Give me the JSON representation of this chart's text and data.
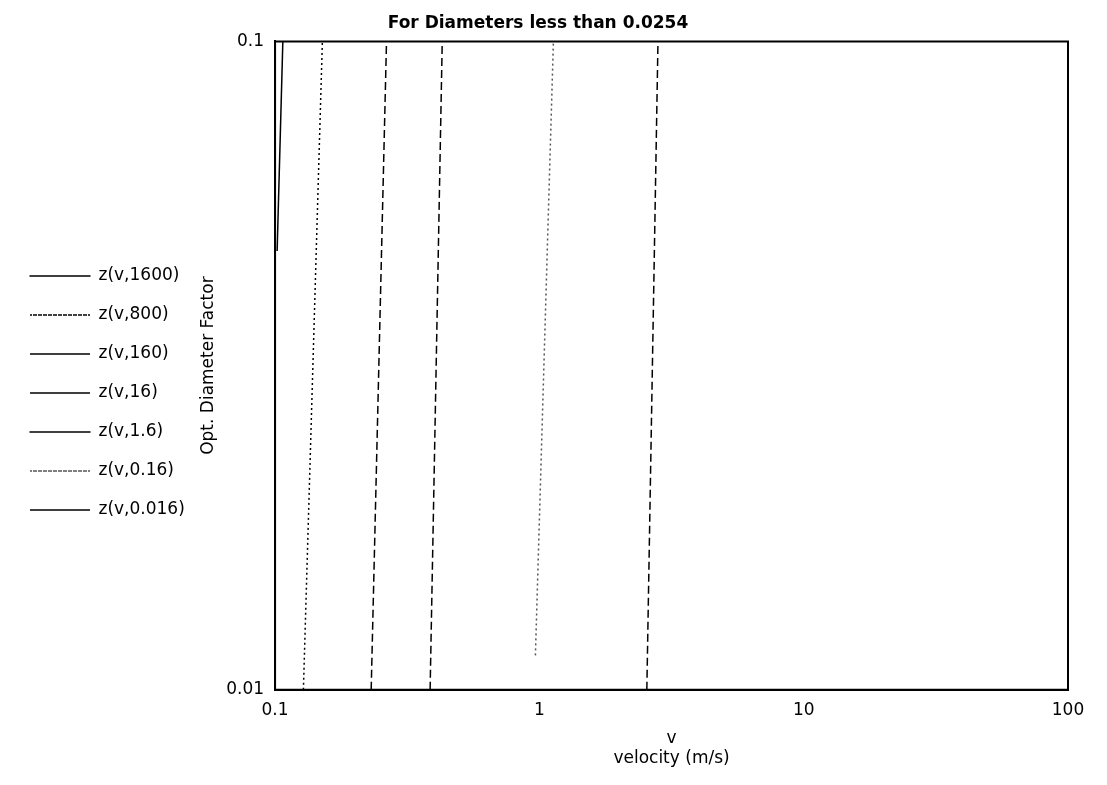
{
  "chart_data": {
    "type": "line",
    "title": "For Diameters less than 0.0254",
    "xlabel": "v\nvelocity (m/s)",
    "ylabel": "Opt. Diameter Factor",
    "log": "xy",
    "xlim": [
      0.1,
      100
    ],
    "ylim": [
      0.01,
      0.1
    ],
    "xticks": [
      0.1,
      1,
      10,
      100
    ],
    "yticks": [
      0.01,
      0.1
    ],
    "grid": false,
    "legend": "left",
    "marker": "none",
    "series": [
      {
        "name": "z(v,1600)",
        "color": "#000000",
        "line_style": "solid",
        "x": [
          0.1018,
          0.107
        ],
        "values": [
          0.0475,
          0.1
        ]
      },
      {
        "name": "z(v,800)",
        "color": "#000000",
        "line_style": "dotted",
        "x": [
          0.128,
          0.151
        ],
        "values": [
          0.01,
          0.1
        ]
      },
      {
        "name": "z(v,160)",
        "color": "#000000",
        "line_style": "dashed",
        "x": [
          0.231,
          0.264
        ],
        "values": [
          0.01,
          0.1
        ]
      },
      {
        "name": "z(v,16)",
        "color": "#000000",
        "line_style": "dashed",
        "x": [
          0.386,
          0.429
        ],
        "values": [
          0.01,
          0.1
        ]
      },
      {
        "name": "z(v,1.6)",
        "color": "#000000",
        "line_style": "solid",
        "x": [
          null,
          null
        ],
        "values": [
          null,
          null
        ]
      },
      {
        "name": "z(v,0.16)",
        "color": "#555555",
        "line_style": "dotted",
        "x": [
          0.966,
          1.13
        ],
        "values": [
          0.0113,
          0.1
        ]
      },
      {
        "name": "z(v,0.016)",
        "color": "#000000",
        "line_style": "dashed",
        "x": [
          2.55,
          2.81
        ],
        "values": [
          0.01,
          0.1
        ]
      }
    ]
  }
}
